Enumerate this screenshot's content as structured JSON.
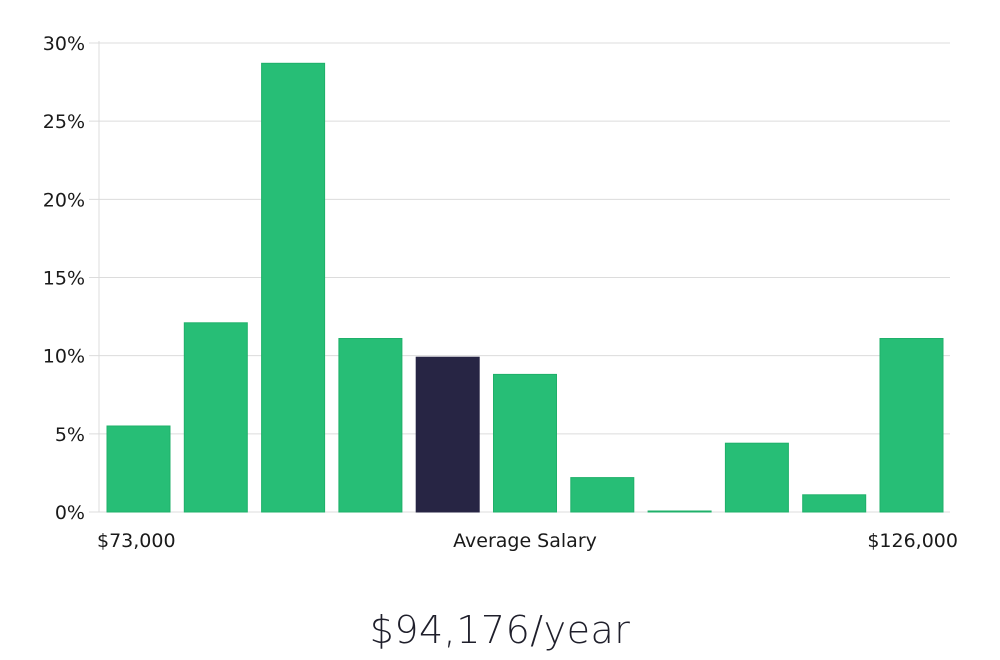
{
  "chart_data": {
    "type": "bar",
    "categories": [
      "1",
      "2",
      "3",
      "4",
      "5",
      "6",
      "7",
      "8",
      "9",
      "10",
      "11"
    ],
    "values": [
      5.5,
      12.1,
      28.7,
      11.1,
      9.9,
      8.8,
      2.2,
      0.05,
      4.4,
      1.1,
      11.1
    ],
    "highlight_index": 4,
    "ylim": [
      0,
      30
    ],
    "yticks": [
      "0%",
      "5%",
      "10%",
      "15%",
      "20%",
      "25%",
      "30%"
    ],
    "ytick_values": [
      0,
      5,
      10,
      15,
      20,
      25,
      30
    ],
    "x_label_left": "$73,000",
    "x_label_center": "Average Salary",
    "x_label_right": "$126,000",
    "grid": true,
    "colors": {
      "bar": "#27be76",
      "bar_stroke": "#1fb06a",
      "highlight": "#272544",
      "grid": "#dcdcdc"
    }
  },
  "salary_text": "$94,176/year"
}
